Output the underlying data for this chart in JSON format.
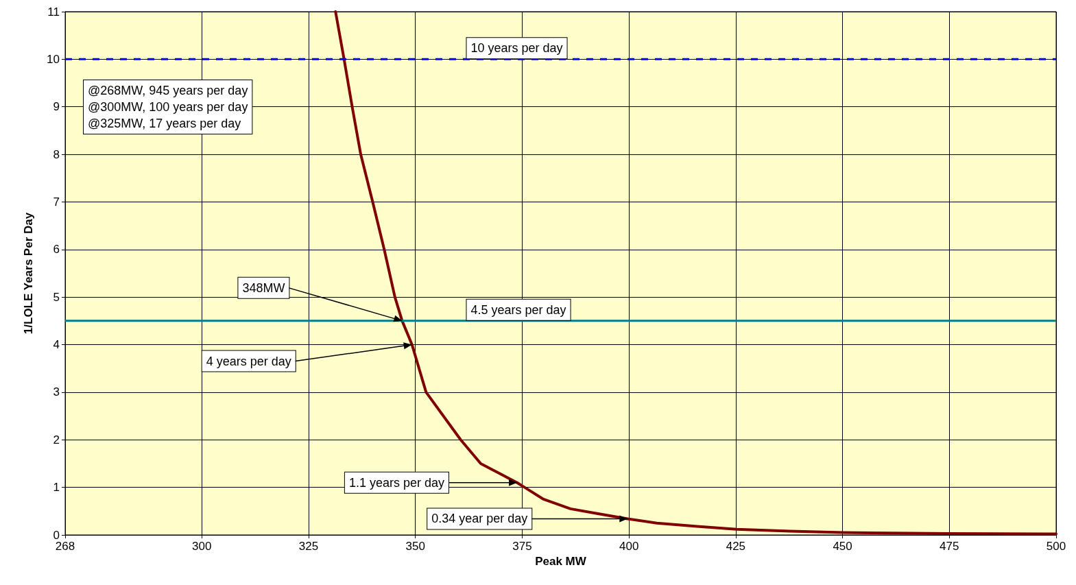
{
  "chart_data": {
    "type": "line",
    "xlabel": "Peak MW",
    "ylabel": "1/LOLE Years Per Day",
    "x": [
      331.3,
      333.3,
      335.2,
      337.2,
      340.0,
      342.7,
      345.2,
      346.9,
      349.2,
      352.5,
      360.6,
      365.3,
      373.8,
      380,
      386.3,
      392.5,
      399.7,
      406.5,
      415.9,
      425.2,
      437.7,
      450.2,
      475,
      500
    ],
    "series": [
      {
        "color": "#800000",
        "values": [
          11,
          10,
          9,
          8,
          7,
          6,
          5,
          4.5,
          4,
          3,
          2,
          1.5,
          1.1,
          0.75,
          0.55,
          0.45,
          0.34,
          0.25,
          0.18,
          0.12,
          0.08,
          0.05,
          0.03,
          0.02
        ]
      }
    ],
    "xlim": [
      268,
      500
    ],
    "xticks": [
      268,
      300,
      325,
      350,
      375,
      400,
      425,
      450,
      475,
      500
    ],
    "ylim": [
      0,
      11
    ],
    "yticks": [
      0,
      1,
      2,
      3,
      4,
      5,
      6,
      7,
      8,
      9,
      10,
      11
    ],
    "grid": true,
    "marker": "none",
    "line_style": "solid",
    "ref_lines": [
      {
        "axis": "y",
        "value": 10,
        "label": "10 years per day",
        "color": "#0000ff",
        "line_style": "dashed"
      },
      {
        "axis": "y",
        "value": 4.5,
        "label": "4.5 years per day",
        "color": "#008080",
        "line_style": "solid"
      }
    ],
    "annotations": [
      "@268MW, 945 years per day",
      "@300MW, 100 years per day",
      "@325MW, 17 years per day",
      {
        "text": "348MW",
        "x": 346.9,
        "y": 4.5
      },
      {
        "text": "4 years per day",
        "x": 349.2,
        "y": 4
      },
      {
        "text": "1.1 years per day",
        "x": 373.8,
        "y": 1.1
      },
      {
        "text": "0.34 year per day",
        "x": 399.7,
        "y": 0.34
      }
    ]
  }
}
